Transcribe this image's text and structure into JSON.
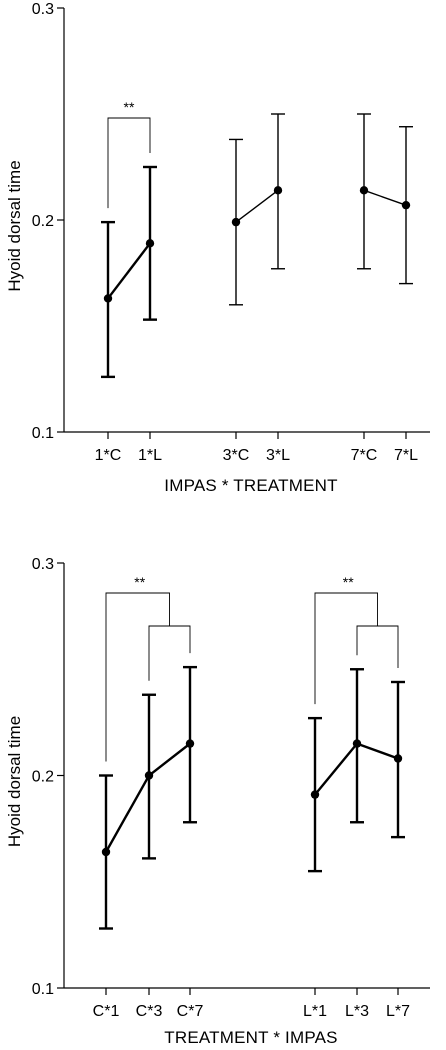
{
  "chart_data": [
    {
      "type": "line",
      "ylabel": "Hyoid dorsal time",
      "xlabel": "IMPAS * TREATMENT",
      "ylim": [
        0.1,
        0.3
      ],
      "yticks": [
        "0.1",
        "0.2",
        "0.3"
      ],
      "categories": [
        "1*C",
        "1*L",
        "3*C",
        "3*L",
        "7*C",
        "7*L"
      ],
      "series": [
        {
          "group": "1",
          "points": [
            {
              "x": "1*C",
              "mean": 0.163,
              "low": 0.126,
              "high": 0.199
            },
            {
              "x": "1*L",
              "mean": 0.189,
              "low": 0.153,
              "high": 0.225
            }
          ]
        },
        {
          "group": "3",
          "points": [
            {
              "x": "3*C",
              "mean": 0.199,
              "low": 0.16,
              "high": 0.238
            },
            {
              "x": "3*L",
              "mean": 0.214,
              "low": 0.177,
              "high": 0.25
            }
          ]
        },
        {
          "group": "7",
          "points": [
            {
              "x": "7*C",
              "mean": 0.214,
              "low": 0.177,
              "high": 0.25
            },
            {
              "x": "7*L",
              "mean": 0.207,
              "low": 0.17,
              "high": 0.244
            }
          ]
        }
      ],
      "annotations": [
        {
          "text": "**",
          "from": "1*C",
          "to": "1*L"
        }
      ],
      "grid": false
    },
    {
      "type": "line",
      "ylabel": "Hyoid dorsal time",
      "xlabel": "TREATMENT * IMPAS",
      "ylim": [
        0.1,
        0.3
      ],
      "yticks": [
        "0.1",
        "0.2",
        "0.3"
      ],
      "categories": [
        "C*1",
        "C*3",
        "C*7",
        "L*1",
        "L*3",
        "L*7"
      ],
      "series": [
        {
          "group": "C",
          "points": [
            {
              "x": "C*1",
              "mean": 0.164,
              "low": 0.128,
              "high": 0.2
            },
            {
              "x": "C*3",
              "mean": 0.2,
              "low": 0.161,
              "high": 0.238
            },
            {
              "x": "C*7",
              "mean": 0.215,
              "low": 0.178,
              "high": 0.251
            }
          ]
        },
        {
          "group": "L",
          "points": [
            {
              "x": "L*1",
              "mean": 0.191,
              "low": 0.155,
              "high": 0.227
            },
            {
              "x": "L*3",
              "mean": 0.215,
              "low": 0.178,
              "high": 0.25
            },
            {
              "x": "L*7",
              "mean": 0.208,
              "low": 0.171,
              "high": 0.244
            }
          ]
        }
      ],
      "annotations": [
        {
          "text": "**",
          "from": "C*1",
          "to": [
            "C*3",
            "C*7"
          ]
        },
        {
          "text": "**",
          "from": "L*1",
          "to": [
            "L*3",
            "L*7"
          ]
        }
      ],
      "grid": false
    }
  ]
}
